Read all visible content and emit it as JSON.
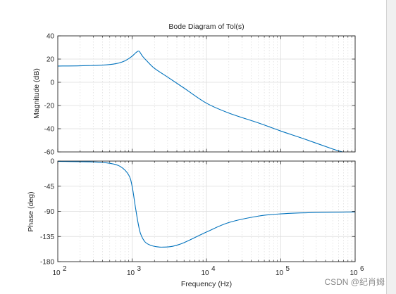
{
  "chart_data": {
    "type": "line",
    "title": "Bode Diagram of Tol(s)",
    "xlabel": "Frequency  (Hz)",
    "xscale": "log",
    "xlim": [
      100,
      1000000
    ],
    "x_tick_labels": [
      {
        "value": 100,
        "base": "10",
        "exp": "2"
      },
      {
        "value": 1000,
        "base": "10",
        "exp": "3"
      },
      {
        "value": 10000,
        "base": "10",
        "exp": "4"
      },
      {
        "value": 100000,
        "base": "10",
        "exp": "5"
      },
      {
        "value": 1000000,
        "base": "10",
        "exp": "6"
      }
    ],
    "grid": true,
    "panels": [
      {
        "name": "magnitude",
        "ylabel": "Magnitude (dB)",
        "ylim": [
          -60,
          40
        ],
        "yticks": [
          40,
          20,
          0,
          -20,
          -40,
          -60
        ],
        "series": [
          {
            "color": "#0072bd",
            "x": [
              100,
              200,
              400,
              600,
              800,
              1000,
              1100,
              1200,
              1250,
              1300,
              1400,
              1600,
              2000,
              3000,
              5000,
              10000,
              20000,
              50000,
              100000,
              200000,
              500000,
              680000
            ],
            "values": [
              14.0,
              14.2,
              14.8,
              16.0,
              18.5,
              22.5,
              25.0,
              26.8,
              26.6,
              25.0,
              22.0,
              18.0,
              12.0,
              4.5,
              -5.0,
              -18.0,
              -26.5,
              -35.0,
              -42.0,
              -48.5,
              -57.5,
              -60.0
            ]
          }
        ]
      },
      {
        "name": "phase",
        "ylabel": "Phase (deg)",
        "ylim": [
          -180,
          0
        ],
        "yticks": [
          0,
          -45,
          -90,
          -135,
          -180
        ],
        "series": [
          {
            "color": "#0072bd",
            "x": [
              100,
              300,
              500,
              700,
              900,
              1000,
              1100,
              1200,
              1300,
              1500,
              1800,
              2200,
              2600,
              3500,
              5000,
              10000,
              20000,
              50000,
              100000,
              300000,
              1000000
            ],
            "values": [
              -0.5,
              -1.5,
              -4.0,
              -10.0,
              -25.0,
              -45.0,
              -80.0,
              -110.0,
              -130.0,
              -145.0,
              -151.0,
              -153.5,
              -154.0,
              -152.5,
              -146.0,
              -127.0,
              -110.0,
              -98.5,
              -94.5,
              -92.0,
              -91.0
            ]
          }
        ]
      }
    ]
  },
  "watermark": "CSDN @纪肖姆"
}
